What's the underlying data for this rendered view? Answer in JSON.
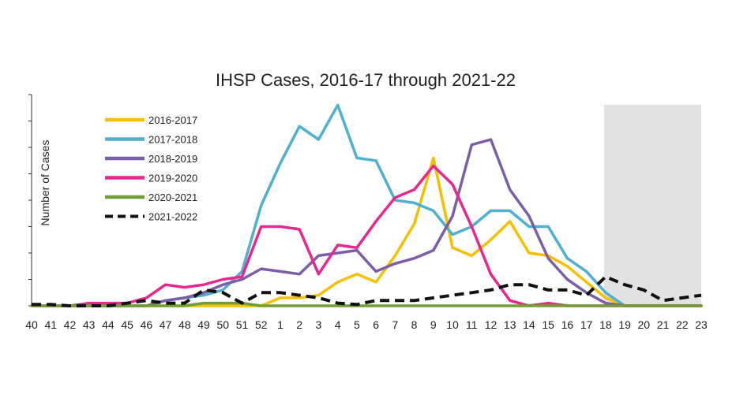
{
  "chart_data": {
    "type": "line",
    "title": "IHSP Cases, 2016-17 through 2021-22",
    "xlabel": "",
    "ylabel": "Number of Cases",
    "categories": [
      "40",
      "41",
      "42",
      "43",
      "44",
      "45",
      "46",
      "47",
      "48",
      "49",
      "50",
      "51",
      "52",
      "1",
      "2",
      "3",
      "4",
      "5",
      "6",
      "7",
      "8",
      "9",
      "10",
      "11",
      "12",
      "13",
      "14",
      "15",
      "16",
      "17",
      "18",
      "19",
      "20",
      "21",
      "22",
      "23"
    ],
    "ylim": [
      0,
      8
    ],
    "shaded_region": {
      "from": "18",
      "to": "23",
      "color": "#e2e2e2"
    },
    "legend_position": "top-left",
    "series": [
      {
        "name": "2016-2017",
        "color": "#f5c000",
        "dashed": false,
        "values": [
          0,
          0,
          0,
          0,
          0,
          0,
          0,
          0,
          0,
          0,
          0,
          0,
          0,
          0.3,
          0.3,
          0.4,
          0.9,
          1.2,
          0.9,
          1.9,
          3.1,
          5.6,
          2.2,
          1.9,
          2.5,
          3.2,
          2.0,
          1.9,
          1.5,
          0.9,
          0.3,
          0,
          0,
          0,
          0,
          0
        ]
      },
      {
        "name": "2017-2018",
        "color": "#4fb0cf",
        "dashed": false,
        "values": [
          0,
          0,
          0,
          0,
          0,
          0,
          0,
          0.2,
          0.3,
          0.4,
          0.6,
          1.3,
          3.8,
          5.4,
          6.8,
          6.3,
          7.6,
          5.6,
          5.5,
          4.0,
          3.9,
          3.6,
          2.7,
          3.0,
          3.6,
          3.6,
          3.0,
          3.0,
          1.8,
          1.3,
          0.5,
          0,
          0,
          0,
          0,
          0
        ]
      },
      {
        "name": "2018-2019",
        "color": "#7c5ea8",
        "dashed": false,
        "values": [
          0,
          0,
          0,
          0,
          0,
          0,
          0,
          0.2,
          0.3,
          0.5,
          0.8,
          1.0,
          1.4,
          1.3,
          1.2,
          1.9,
          2.0,
          2.1,
          1.3,
          1.6,
          1.8,
          2.1,
          3.4,
          6.1,
          6.3,
          4.4,
          3.4,
          1.8,
          1.0,
          0.5,
          0.1,
          0,
          0,
          0,
          0,
          0
        ]
      },
      {
        "name": "2019-2020",
        "color": "#e8288f",
        "dashed": false,
        "values": [
          0,
          0,
          0,
          0.1,
          0.1,
          0.1,
          0.3,
          0.8,
          0.7,
          0.8,
          1.0,
          1.1,
          3.0,
          3.0,
          2.9,
          1.2,
          2.3,
          2.2,
          3.2,
          4.1,
          4.4,
          5.3,
          4.6,
          3.0,
          1.2,
          0.2,
          0,
          0.1,
          0,
          0,
          0,
          0,
          0,
          0,
          0,
          0
        ]
      },
      {
        "name": "2020-2021",
        "color": "#6e9e35",
        "dashed": false,
        "values": [
          0,
          0,
          0,
          0,
          0,
          0,
          0,
          0,
          0,
          0.1,
          0.1,
          0.1,
          0,
          0,
          0,
          0,
          0,
          0,
          0,
          0,
          0,
          0,
          0,
          0,
          0,
          0,
          0,
          0,
          0,
          0,
          0,
          0,
          0,
          0,
          0,
          0
        ]
      },
      {
        "name": "2021-2022",
        "color": "#111111",
        "dashed": true,
        "values": [
          0.05,
          0.05,
          0,
          0,
          0,
          0.1,
          0.2,
          0.1,
          0.1,
          0.6,
          0.5,
          0.1,
          0.5,
          0.5,
          0.4,
          0.3,
          0.1,
          0.05,
          0.2,
          0.2,
          0.2,
          0.3,
          0.4,
          0.5,
          0.6,
          0.8,
          0.8,
          0.6,
          0.6,
          0.4,
          1.1,
          0.8,
          0.6,
          0.2,
          0.3,
          0.4
        ]
      }
    ]
  }
}
